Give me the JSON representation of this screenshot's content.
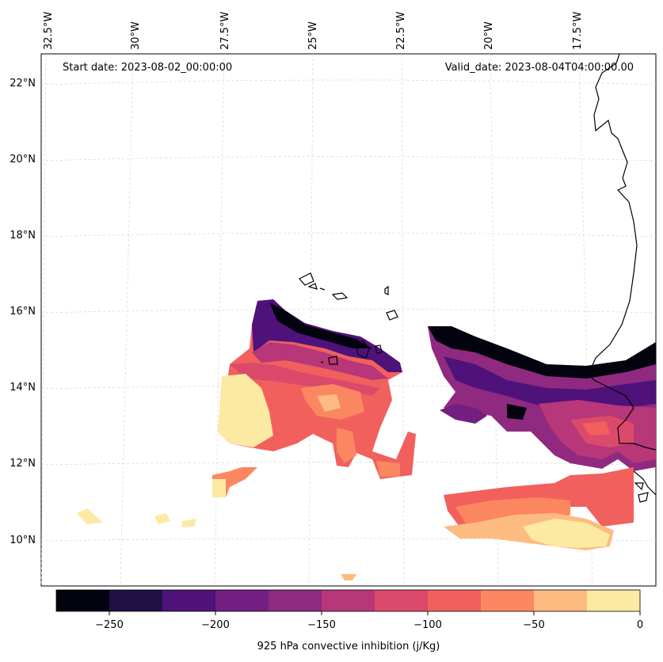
{
  "map": {
    "start_date": "Start date: 2023-08-02_00:00:00",
    "valid_date": "Valid_date: 2023-08-04T04:00:00.00",
    "lat_labels": [
      "22°N",
      "20°N",
      "18°N",
      "16°N",
      "14°N",
      "12°N",
      "10°N"
    ],
    "lon_labels": [
      "32.5°W",
      "30°W",
      "27.5°W",
      "25°W",
      "22.5°W",
      "20°W",
      "17.5°W"
    ],
    "colorbar": {
      "label": "925 hPa convective inhibition (j/Kg)",
      "ticks": [
        "−250",
        "−200",
        "−150",
        "−100",
        "−50",
        "0"
      ],
      "colors": [
        "#03030f",
        "#211044",
        "#4f127b",
        "#721f81",
        "#8f2a80",
        "#b73779",
        "#db4a6b",
        "#f1605d",
        "#fb8761",
        "#febb80",
        "#fce9a2"
      ]
    },
    "grid": true
  }
}
